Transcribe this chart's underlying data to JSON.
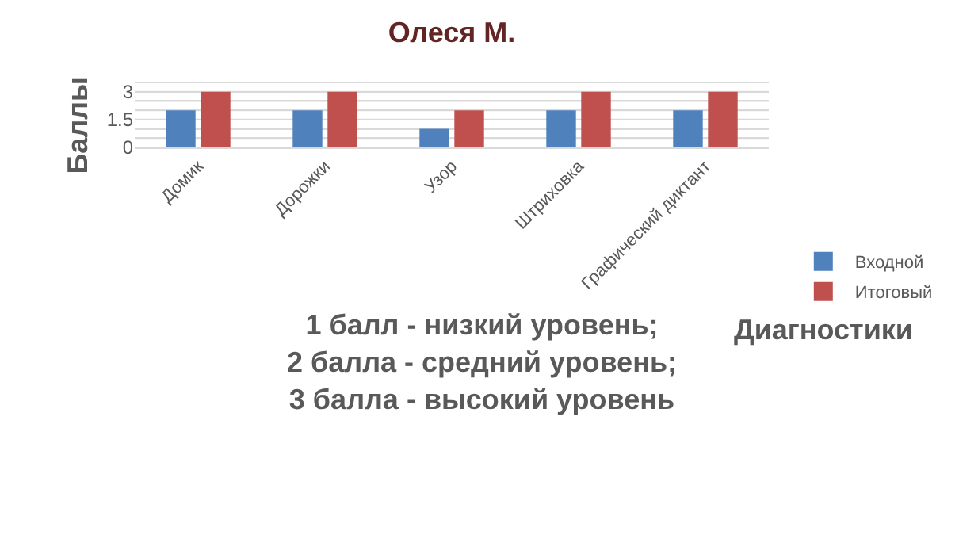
{
  "chart_data": {
    "type": "bar",
    "title": "Олеся М.",
    "ylabel": "Баллы",
    "xlabel": "Диагностики",
    "annotations": [
      "1 балл - низкий уровень;\n2 балла - средний уровень;\n3 балла - высокий уровень"
    ],
    "categories": [
      "Домик",
      "Дорожки",
      "Узор",
      "Штриховка",
      "Графический диктант"
    ],
    "series": [
      {
        "name": "Входной",
        "color": "#4f81bd",
        "values": [
          2,
          2,
          1,
          2,
          2
        ]
      },
      {
        "name": "Итоговый",
        "color": "#c0504d",
        "values": [
          3,
          3,
          2,
          3,
          3
        ]
      }
    ],
    "ylim": [
      0,
      3.5
    ],
    "yticks": [
      0,
      {
        "value": 0.5,
        "label": null
      },
      {
        "value": 1,
        "label": null
      },
      1.5,
      {
        "value": 2,
        "label": null
      },
      {
        "value": 2.5,
        "label": null
      },
      3,
      {
        "value": 3.5,
        "label": null
      }
    ],
    "grid": "y",
    "legend": "right"
  }
}
